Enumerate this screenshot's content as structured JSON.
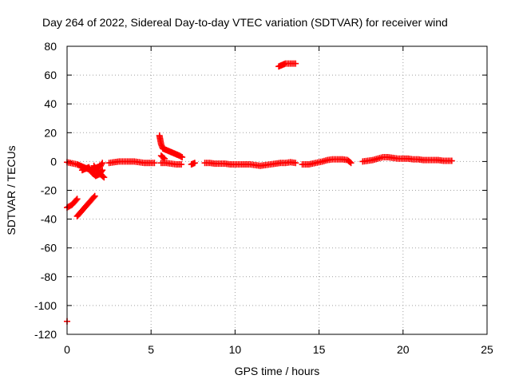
{
  "chart_data": {
    "type": "scatter",
    "title": "Day 264 of 2022, Sidereal Day-to-day VTEC variation (SDTVAR) for receiver wind",
    "xlabel": "GPS time / hours",
    "ylabel": "SDTVAR / TECUs",
    "xlim": [
      0,
      25
    ],
    "ylim": [
      -120,
      80
    ],
    "xticks": [
      "0",
      "5",
      "10",
      "15",
      "20",
      "25"
    ],
    "yticks": [
      "80",
      "60",
      "40",
      "20",
      "0",
      "-20",
      "-40",
      "-60",
      "-80",
      "-100",
      "-120"
    ],
    "grid": true,
    "marker": "plus",
    "color": "#ff0000",
    "series": [
      {
        "name": "SDTVAR",
        "segments": [
          [
            [
              0.0,
              -0.5
            ],
            [
              0.2,
              -1
            ],
            [
              0.4,
              -1.5
            ],
            [
              0.6,
              -2
            ],
            [
              0.8,
              -3
            ],
            [
              1.0,
              -4
            ],
            [
              1.2,
              -5
            ],
            [
              1.4,
              -6
            ],
            [
              1.6,
              -5
            ],
            [
              1.8,
              -4
            ],
            [
              2.0,
              -3
            ],
            [
              2.1,
              -1
            ]
          ],
          [
            [
              0.9,
              -6
            ],
            [
              1.1,
              -5
            ],
            [
              1.3,
              -4
            ],
            [
              1.5,
              -8
            ],
            [
              1.7,
              -10
            ],
            [
              1.9,
              -9
            ],
            [
              2.1,
              -6
            ]
          ],
          [
            [
              1.6,
              -3
            ],
            [
              1.8,
              -7
            ],
            [
              2.0,
              -9
            ],
            [
              2.2,
              -11
            ]
          ],
          [
            [
              0.0,
              -32
            ],
            [
              0.15,
              -31
            ],
            [
              0.3,
              -30
            ],
            [
              0.45,
              -28
            ],
            [
              0.6,
              -26
            ]
          ],
          [
            [
              0.6,
              -38
            ],
            [
              0.75,
              -36
            ],
            [
              0.9,
              -34
            ],
            [
              1.05,
              -32
            ],
            [
              1.2,
              -30
            ],
            [
              1.35,
              -28
            ],
            [
              1.5,
              -26
            ],
            [
              1.65,
              -24
            ]
          ],
          [
            [
              0.0,
              -111
            ]
          ],
          [
            [
              2.5,
              -1
            ],
            [
              2.8,
              -0.5
            ],
            [
              3.1,
              0
            ],
            [
              3.4,
              0
            ],
            [
              3.7,
              0
            ],
            [
              4.0,
              0
            ],
            [
              4.3,
              -0.5
            ],
            [
              4.6,
              -1
            ],
            [
              4.9,
              -1
            ],
            [
              5.2,
              -1
            ]
          ],
          [
            [
              5.5,
              18
            ],
            [
              5.6,
              12
            ],
            [
              5.7,
              9
            ],
            [
              5.9,
              8
            ],
            [
              6.1,
              7
            ],
            [
              6.3,
              6
            ],
            [
              6.5,
              5
            ],
            [
              6.7,
              4
            ],
            [
              6.85,
              3
            ]
          ],
          [
            [
              5.6,
              4
            ],
            [
              5.8,
              2
            ]
          ],
          [
            [
              5.6,
              -1
            ],
            [
              5.9,
              -1
            ],
            [
              6.2,
              -1.5
            ],
            [
              6.5,
              -2
            ],
            [
              6.8,
              -2
            ]
          ],
          [
            [
              7.4,
              -2
            ],
            [
              7.6,
              -1
            ]
          ],
          [
            [
              8.2,
              -1
            ],
            [
              8.5,
              -1
            ],
            [
              8.8,
              -1.5
            ],
            [
              9.1,
              -1.5
            ],
            [
              9.4,
              -1.5
            ],
            [
              9.7,
              -2
            ],
            [
              10.0,
              -2
            ],
            [
              10.3,
              -2
            ],
            [
              10.6,
              -2
            ],
            [
              10.9,
              -2
            ],
            [
              11.2,
              -2.5
            ],
            [
              11.5,
              -3
            ],
            [
              11.8,
              -2.5
            ],
            [
              12.1,
              -2
            ],
            [
              12.4,
              -1.5
            ],
            [
              12.7,
              -1
            ],
            [
              13.0,
              -1
            ],
            [
              13.3,
              -0.5
            ],
            [
              13.6,
              -1
            ]
          ],
          [
            [
              12.6,
              66
            ],
            [
              12.8,
              67
            ],
            [
              13.0,
              68
            ],
            [
              13.3,
              68
            ],
            [
              13.6,
              68
            ]
          ],
          [
            [
              14.0,
              -2
            ],
            [
              14.4,
              -2
            ],
            [
              14.8,
              -1
            ],
            [
              15.2,
              0
            ],
            [
              15.5,
              1
            ],
            [
              15.8,
              1.5
            ],
            [
              16.1,
              1.5
            ],
            [
              16.4,
              1.5
            ],
            [
              16.7,
              1
            ],
            [
              16.9,
              -1
            ]
          ],
          [
            [
              17.6,
              0
            ],
            [
              17.9,
              0.5
            ],
            [
              18.2,
              1
            ],
            [
              18.5,
              2
            ],
            [
              18.8,
              3
            ],
            [
              19.1,
              3
            ],
            [
              19.4,
              2.5
            ],
            [
              19.7,
              2
            ],
            [
              20.0,
              2
            ],
            [
              20.3,
              2
            ],
            [
              20.6,
              1.5
            ],
            [
              20.9,
              1.5
            ],
            [
              21.2,
              1
            ],
            [
              21.5,
              1
            ],
            [
              21.8,
              1
            ],
            [
              22.1,
              1
            ],
            [
              22.4,
              0.5
            ],
            [
              22.7,
              0.5
            ],
            [
              22.9,
              0.5
            ]
          ]
        ]
      }
    ]
  }
}
